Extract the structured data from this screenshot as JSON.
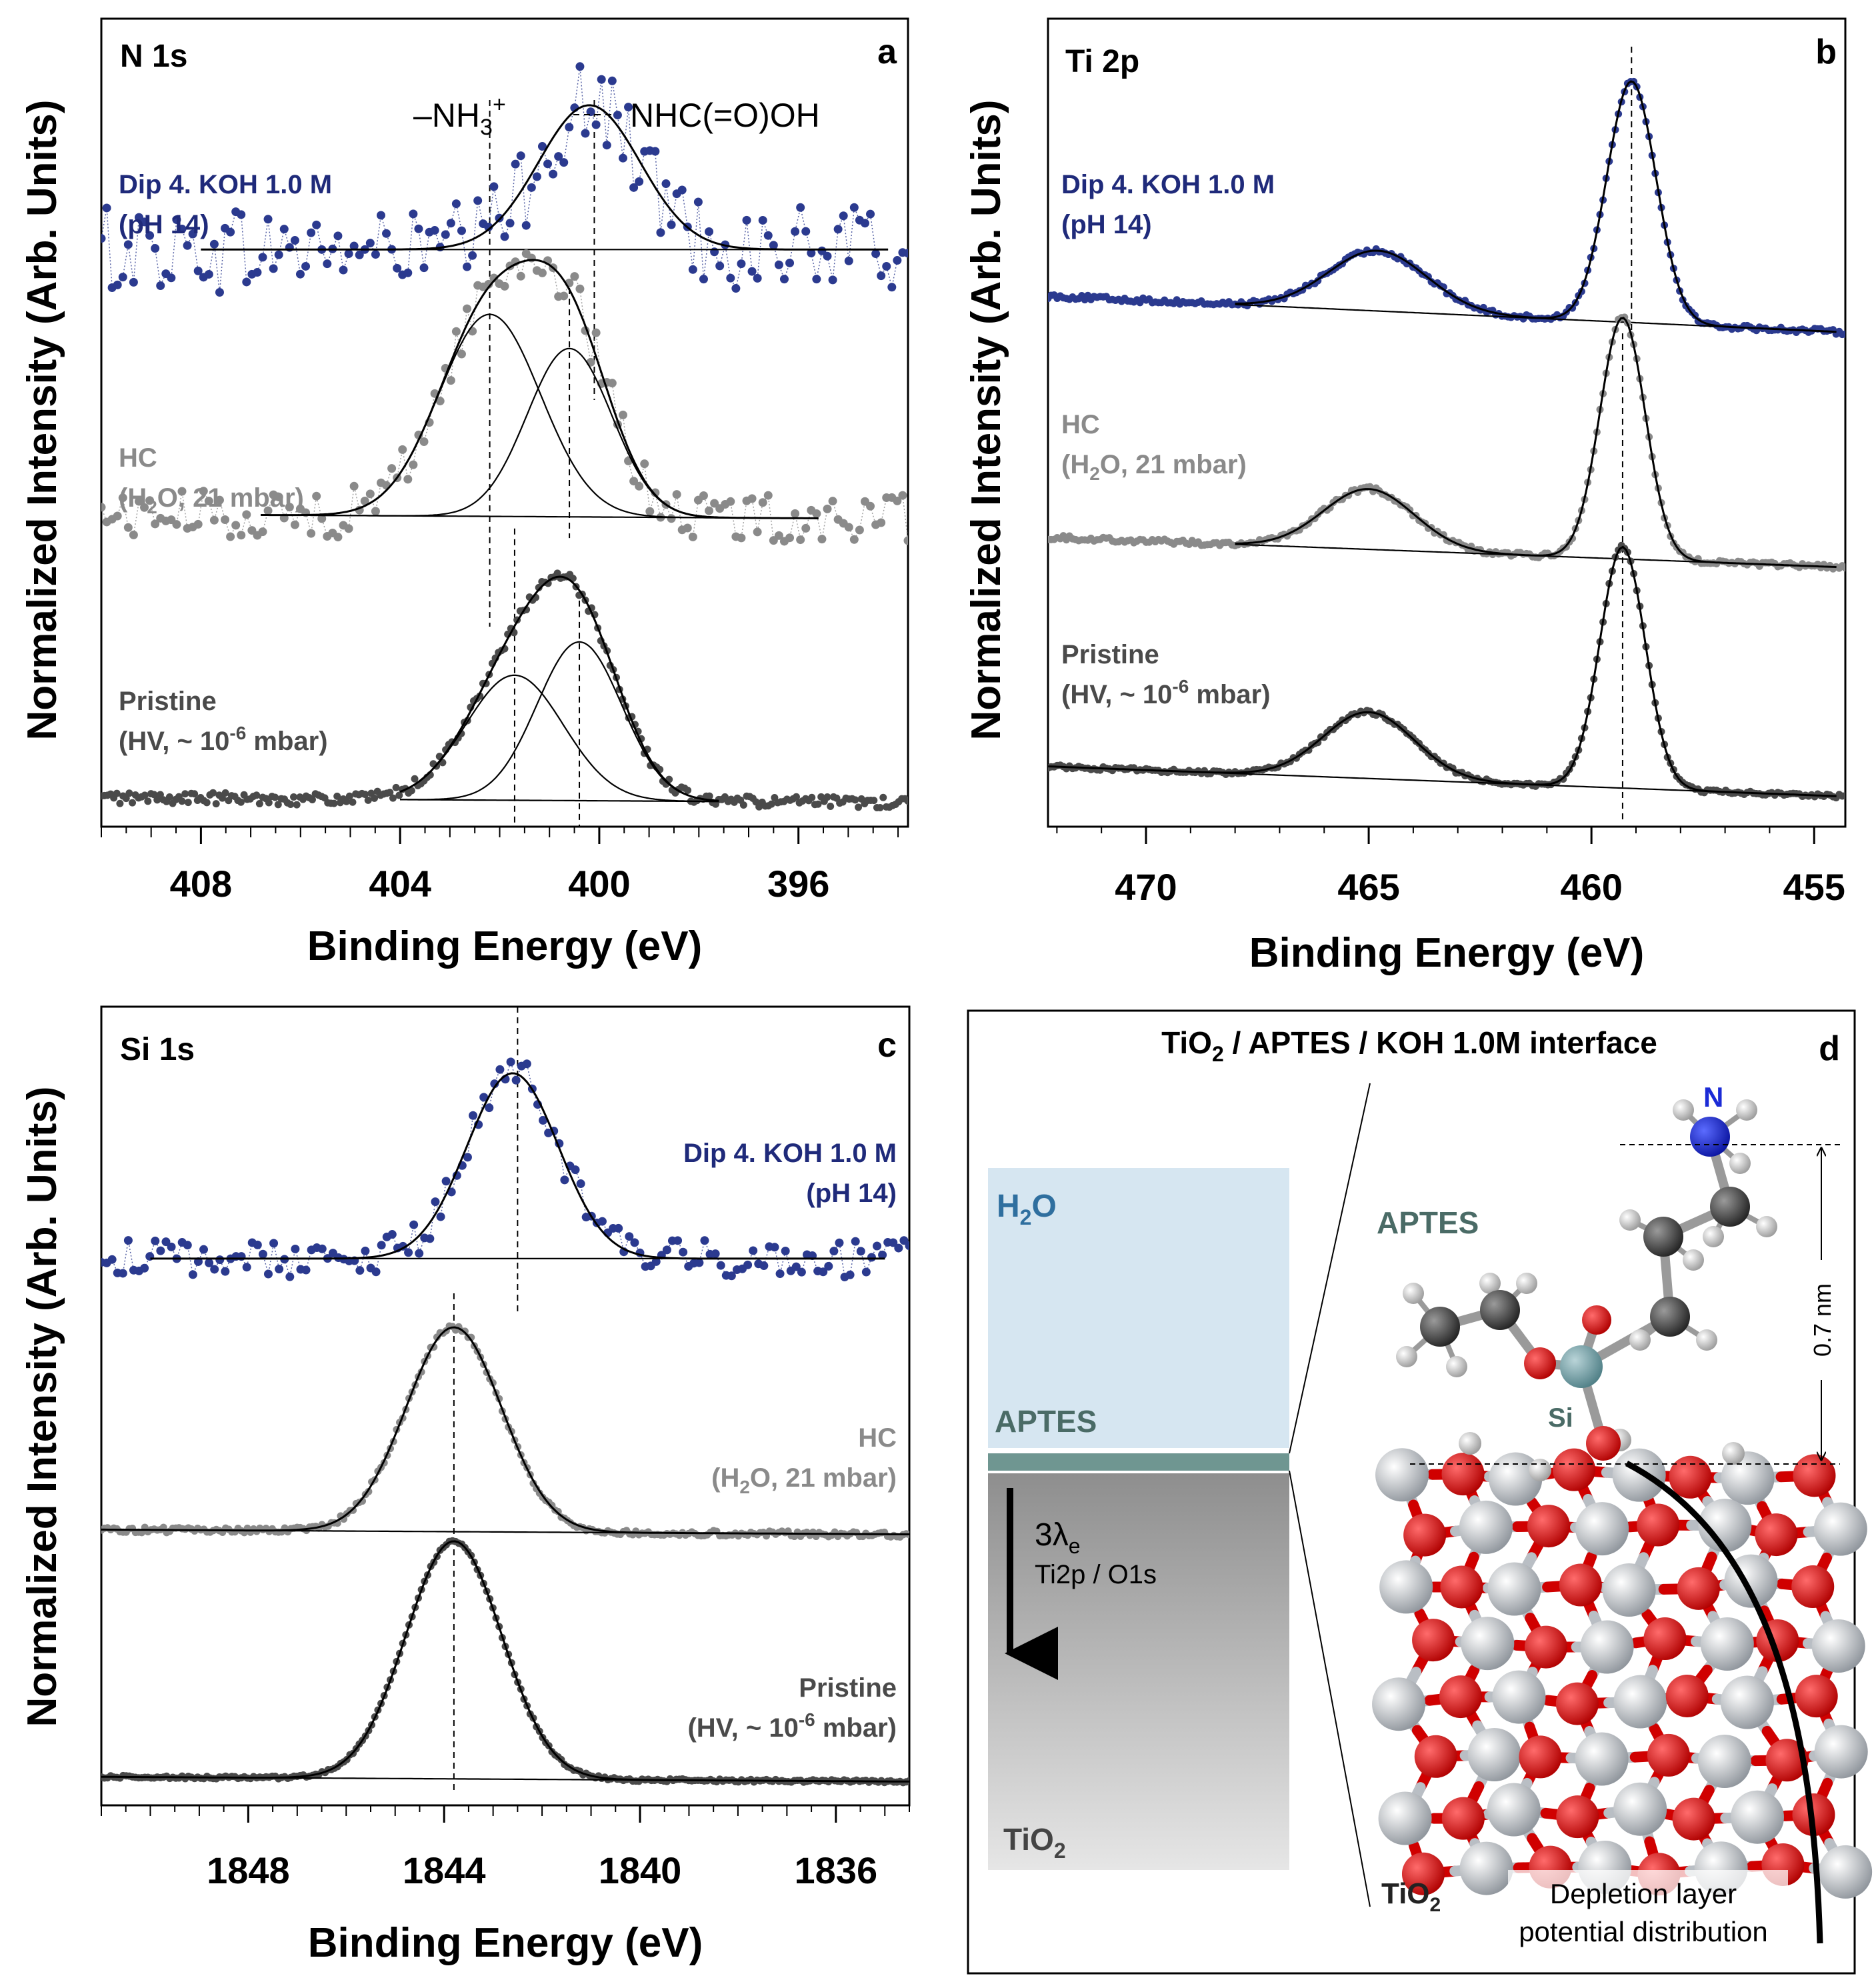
{
  "colors": {
    "dip": "#1f2a7a",
    "dip_dot": "#2b3a8f",
    "hc": "#8a8a8a",
    "pristine": "#4a4a4a",
    "h2o_box": "#d6e6f1",
    "aptes_band": "#6f9691",
    "aptes_text": "#4a6b66",
    "h2o_text": "#2f6f9f",
    "n_atom": "#1b2bd6"
  },
  "chart_data": [
    {
      "id": "a",
      "type": "scatter",
      "panel_letter": "a",
      "title": "N 1s",
      "xlabel": "Binding Energy (eV)",
      "ylabel": "Normalized Intensity (Arb. Units)",
      "xlim": [
        410.0,
        393.8
      ],
      "x_ticks": [
        408,
        404,
        400,
        396
      ],
      "x_tick_labels": [
        "408",
        "404",
        "400",
        "396"
      ],
      "reference_lines": [
        {
          "x": 402.2,
          "label_main": "–NH",
          "label_sub": "3",
          "label_sup": "+"
        },
        {
          "x": 400.1,
          "label_main": "NHC(=O)OH",
          "label_sub": "",
          "label_sup": ""
        }
      ],
      "series": [
        {
          "name": "dip",
          "label_line1": "Dip 4. KOH 1.0 M",
          "label_line2": "(pH 14)",
          "baseline": 0.7,
          "bg_from": 0.7,
          "bg_to": 0.7,
          "peaks": [
            {
              "center": 400.2,
              "fwhm": 2.4,
              "height": 0.3
            }
          ],
          "noise": 0.09,
          "dotted": true,
          "x_from": 410.0,
          "x_to": 393.8,
          "fit_from": 408.0,
          "fit_to": 394.2
        },
        {
          "name": "hc",
          "label_line1": "HC",
          "label_line2": "(H2O, 21 mbar)",
          "baseline": 0.15,
          "bg_from": 0.15,
          "bg_to": 0.14,
          "peaks": [
            {
              "center": 402.2,
              "fwhm": 2.4,
              "height": 0.42
            },
            {
              "center": 400.6,
              "fwhm": 2.0,
              "height": 0.35
            }
          ],
          "noise": 0.05,
          "dotted": true,
          "x_from": 410.0,
          "x_to": 393.8,
          "fit_from": 406.8,
          "fit_to": 395.6
        },
        {
          "name": "pristine",
          "label_line1": "Pristine",
          "label_line2": "(HV, ~ 10-6 mbar)",
          "baseline": -0.44,
          "bg_from": -0.44,
          "bg_to": -0.45,
          "peaks": [
            {
              "center": 401.7,
              "fwhm": 2.3,
              "height": 0.26
            },
            {
              "center": 400.4,
              "fwhm": 2.0,
              "height": 0.33
            }
          ],
          "noise": 0.012,
          "dotted": false,
          "x_from": 410.0,
          "x_to": 393.8,
          "fit_from": 404.0,
          "fit_to": 397.6
        }
      ]
    },
    {
      "id": "b",
      "type": "scatter",
      "panel_letter": "b",
      "title": "Ti 2p",
      "xlabel": "Binding Energy (eV)",
      "ylabel": "Normalized Intensity (Arb. Units)",
      "xlim": [
        472.2,
        454.3
      ],
      "x_ticks": [
        470,
        465,
        460,
        455
      ],
      "x_tick_labels": [
        "470",
        "465",
        "460",
        "455"
      ],
      "reference_lines": [
        {
          "x": 459.1
        },
        {
          "x": 459.3
        }
      ],
      "series": [
        {
          "name": "dip",
          "label_line1": "Dip 4. KOH 1.0 M",
          "label_line2": "(pH 14)",
          "baseline": 0.7,
          "bg_from": 0.76,
          "bg_to": 0.7,
          "peaks": [
            {
              "center": 464.8,
              "fwhm": 2.6,
              "height": 0.1
            },
            {
              "center": 459.1,
              "fwhm": 1.3,
              "height": 0.4
            }
          ],
          "noise": 0.004,
          "dotted": false,
          "x_from": 472.2,
          "x_to": 454.3,
          "fit_from": 468.0,
          "fit_to": 454.5
        },
        {
          "name": "hc",
          "label_line1": "HC",
          "label_line2": "(H2O, 21 mbar)",
          "baseline": 0.31,
          "bg_from": 0.36,
          "bg_to": 0.31,
          "peaks": [
            {
              "center": 465.0,
              "fwhm": 2.4,
              "height": 0.1
            },
            {
              "center": 459.3,
              "fwhm": 1.2,
              "height": 0.4
            }
          ],
          "noise": 0.004,
          "dotted": false,
          "x_from": 472.2,
          "x_to": 454.3,
          "fit_from": 468.0,
          "fit_to": 454.5
        },
        {
          "name": "pristine",
          "label_line1": "Pristine",
          "label_line2": "(HV, ~ 10-6 mbar)",
          "baseline": -0.07,
          "bg_from": -0.02,
          "bg_to": -0.07,
          "peaks": [
            {
              "center": 465.0,
              "fwhm": 2.4,
              "height": 0.11
            },
            {
              "center": 459.3,
              "fwhm": 1.2,
              "height": 0.4
            }
          ],
          "noise": 0.003,
          "dotted": false,
          "x_from": 472.2,
          "x_to": 454.3,
          "fit_from": 472.2,
          "fit_to": 454.5
        }
      ]
    },
    {
      "id": "c",
      "type": "scatter",
      "panel_letter": "c",
      "title": "Si 1s",
      "xlabel": "Binding Energy (eV)",
      "ylabel": "Normalized Intensity (Arb. Units)",
      "xlim": [
        1851.0,
        1834.5
      ],
      "x_ticks": [
        1848,
        1844,
        1840,
        1836
      ],
      "x_tick_labels": [
        "1848",
        "1844",
        "1840",
        "1836"
      ],
      "reference_lines": [
        {
          "x": 1842.5
        },
        {
          "x": 1843.8
        }
      ],
      "series": [
        {
          "name": "dip",
          "label_line1": "Dip 4. KOH 1.0 M",
          "label_line2": "(pH 14)",
          "baseline": 0.72,
          "bg_from": 0.72,
          "bg_to": 0.72,
          "peaks": [
            {
              "center": 1842.6,
              "fwhm": 2.2,
              "height": 0.39
            }
          ],
          "noise": 0.04,
          "dotted": true,
          "x_from": 1851.0,
          "x_to": 1834.5,
          "fit_from": 1850.0,
          "fit_to": 1835.0
        },
        {
          "name": "hc",
          "label_line1": "HC",
          "label_line2": "(H2O, 21 mbar)",
          "baseline": 0.14,
          "bg_from": 0.15,
          "bg_to": 0.14,
          "peaks": [
            {
              "center": 1843.8,
              "fwhm": 2.3,
              "height": 0.43
            }
          ],
          "noise": 0.006,
          "dotted": false,
          "x_from": 1851.0,
          "x_to": 1834.5,
          "fit_from": 1851.0,
          "fit_to": 1834.5
        },
        {
          "name": "pristine",
          "label_line1": "Pristine",
          "label_line2": "(HV, ~ 10-6 mbar)",
          "baseline": -0.38,
          "bg_from": -0.37,
          "bg_to": -0.38,
          "peaks": [
            {
              "center": 1843.8,
              "fwhm": 2.3,
              "height": 0.5
            }
          ],
          "noise": 0.003,
          "dotted": false,
          "x_from": 1851.0,
          "x_to": 1834.5,
          "fit_from": 1851.0,
          "fit_to": 1834.5
        }
      ]
    }
  ],
  "panel_d": {
    "letter": "d",
    "title_pre": "TiO",
    "title_sub": "2",
    "title_post": " / APTES / KOH 1.0M interface",
    "h2o_label": "H",
    "h2o_sub": "2",
    "h2o_post": "O",
    "aptes_layer_label": "APTES",
    "aptes_molecule_label": "APTES",
    "depth_lambda": "3λ",
    "depth_lambda_sub": "e",
    "depth_note": "Ti2p / O1s",
    "tio2_label_pre": "TiO",
    "tio2_label_sub": "2",
    "tio2_bottom_pre": "TiO",
    "tio2_bottom_sub": "2",
    "n_atom_label": "N",
    "si_atom_label": "Si",
    "distance_label": "0.7 nm",
    "depletion_line1": "Depletion layer",
    "depletion_line2": "potential distribution"
  }
}
